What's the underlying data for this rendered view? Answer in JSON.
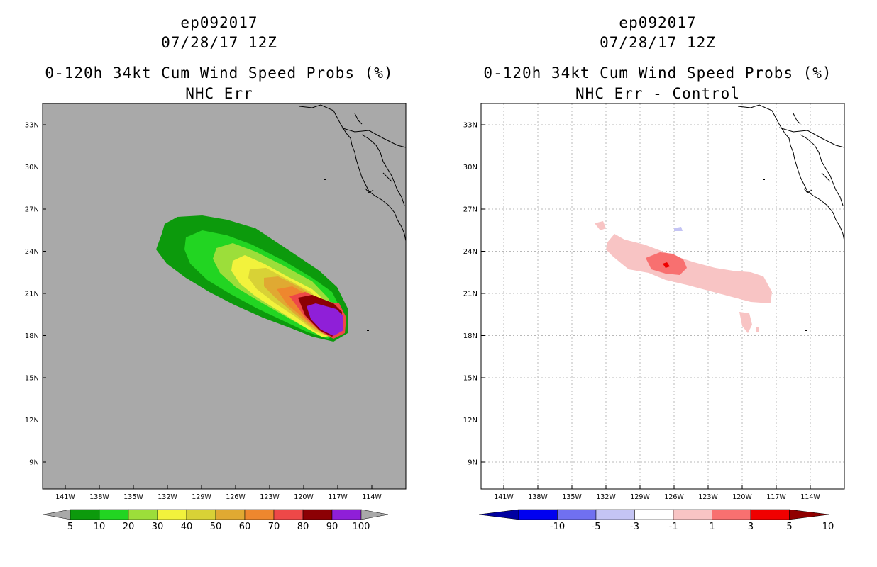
{
  "left": {
    "storm_id": "ep092017",
    "datetime": "07/28/17 12Z",
    "title": "0-120h 34kt Cum Wind Speed Probs (%)",
    "subtitle": "NHC Err",
    "lat_labels": [
      "33N",
      "30N",
      "27N",
      "24N",
      "21N",
      "18N",
      "15N",
      "12N",
      "9N"
    ],
    "lon_labels": [
      "141W",
      "138W",
      "135W",
      "132W",
      "129W",
      "126W",
      "123W",
      "120W",
      "117W",
      "114W"
    ],
    "colorbar": {
      "labels": [
        "5",
        "10",
        "20",
        "30",
        "40",
        "50",
        "60",
        "70",
        "80",
        "90",
        "100"
      ],
      "colors": [
        "#0c9a0c",
        "#22d522",
        "#9cde3a",
        "#f2f23c",
        "#d8d236",
        "#e0a932",
        "#ee872e",
        "#ee4848",
        "#8c0004",
        "#8f1fd8"
      ]
    }
  },
  "right": {
    "storm_id": "ep092017",
    "datetime": "07/28/17 12Z",
    "title": "0-120h 34kt Cum Wind Speed Probs (%)",
    "subtitle": "NHC Err - Control",
    "lat_labels": [
      "33N",
      "30N",
      "27N",
      "24N",
      "21N",
      "18N",
      "15N",
      "12N",
      "9N"
    ],
    "lon_labels": [
      "141W",
      "138W",
      "135W",
      "132W",
      "129W",
      "126W",
      "123W",
      "120W",
      "117W",
      "114W"
    ],
    "colorbar": {
      "labels": [
        "-10",
        "-5",
        "-3",
        "-1",
        "1",
        "3",
        "5",
        "10"
      ],
      "colors": [
        "#0000a0",
        "#0000f0",
        "#7070f0",
        "#c4c4f4",
        "#ffffff",
        "#f8c4c4",
        "#f87070",
        "#f00000",
        "#900000"
      ]
    }
  }
}
